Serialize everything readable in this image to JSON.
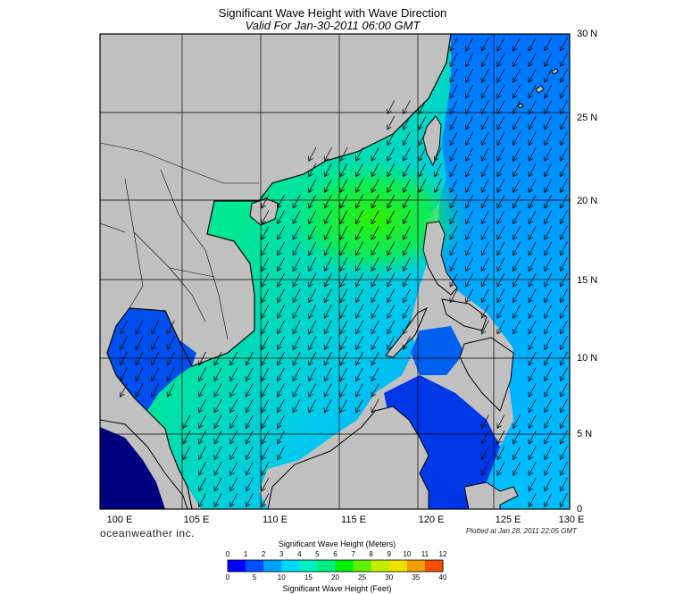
{
  "title": "Significant Wave Height with Wave Direction",
  "subtitle": "Valid For Jan-30-2011 06:00 GMT",
  "brand": "oceanweather inc.",
  "plotted": "Plotted at Jan 28, 2011 22:05 GMT",
  "lat_labels": [
    "30 N",
    "25 N",
    "20 N",
    "15 N",
    "10 N",
    "5 N",
    "0"
  ],
  "lon_labels": [
    "100 E",
    "105 E",
    "110 E",
    "115 E",
    "120 E",
    "125 E",
    "130 E"
  ],
  "colorbar": {
    "title_meters": "Significant Wave Height (Meters)",
    "title_feet": "Significant Wave Height (Feet)",
    "meter_ticks": [
      "0",
      "1",
      "2",
      "3",
      "4",
      "5",
      "6",
      "7",
      "8",
      "9",
      "10",
      "11",
      "12"
    ],
    "feet_ticks": [
      "0",
      "5",
      "10",
      "15",
      "20",
      "25",
      "30",
      "35",
      "40"
    ],
    "colors": [
      "#0000ff",
      "#0050ff",
      "#00a0ff",
      "#00d8ff",
      "#00f0c0",
      "#00f080",
      "#00f000",
      "#60f000",
      "#c0f000",
      "#f0e000",
      "#f0a000",
      "#f05000",
      "#f00000"
    ]
  },
  "colors": {
    "land": "#c0c0c0",
    "coast": "#000000",
    "grid": "#000000"
  }
}
